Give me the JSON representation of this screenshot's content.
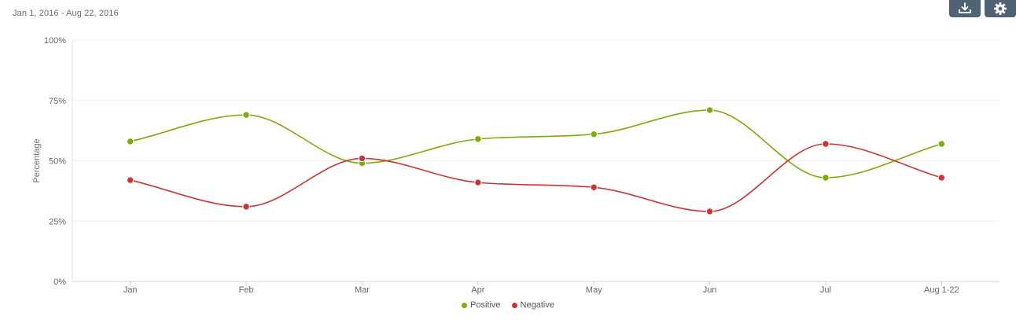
{
  "header": {
    "date_range": "Jan 1, 2016 - Aug 22, 2016"
  },
  "toolbar": {
    "export_icon": "download-tray-icon",
    "settings_icon": "gear-icon"
  },
  "chart_data": {
    "type": "line",
    "title": "",
    "xlabel": "",
    "ylabel": "Percentage",
    "categories": [
      "Jan",
      "Feb",
      "Mar",
      "Apr",
      "May",
      "Jun",
      "Jul",
      "Aug 1-22"
    ],
    "y_ticks": [
      "0%",
      "25%",
      "50%",
      "75%",
      "100%"
    ],
    "ylim": [
      0,
      100
    ],
    "grid": true,
    "legend_position": "bottom-center",
    "smooth": true,
    "series": [
      {
        "name": "Positive",
        "color": "#7cad0f",
        "values": [
          58,
          69,
          49,
          59,
          61,
          71,
          43,
          57
        ]
      },
      {
        "name": "Negative",
        "color": "#c93638",
        "values": [
          42,
          31,
          51,
          41,
          39,
          29,
          57,
          43
        ]
      }
    ]
  }
}
